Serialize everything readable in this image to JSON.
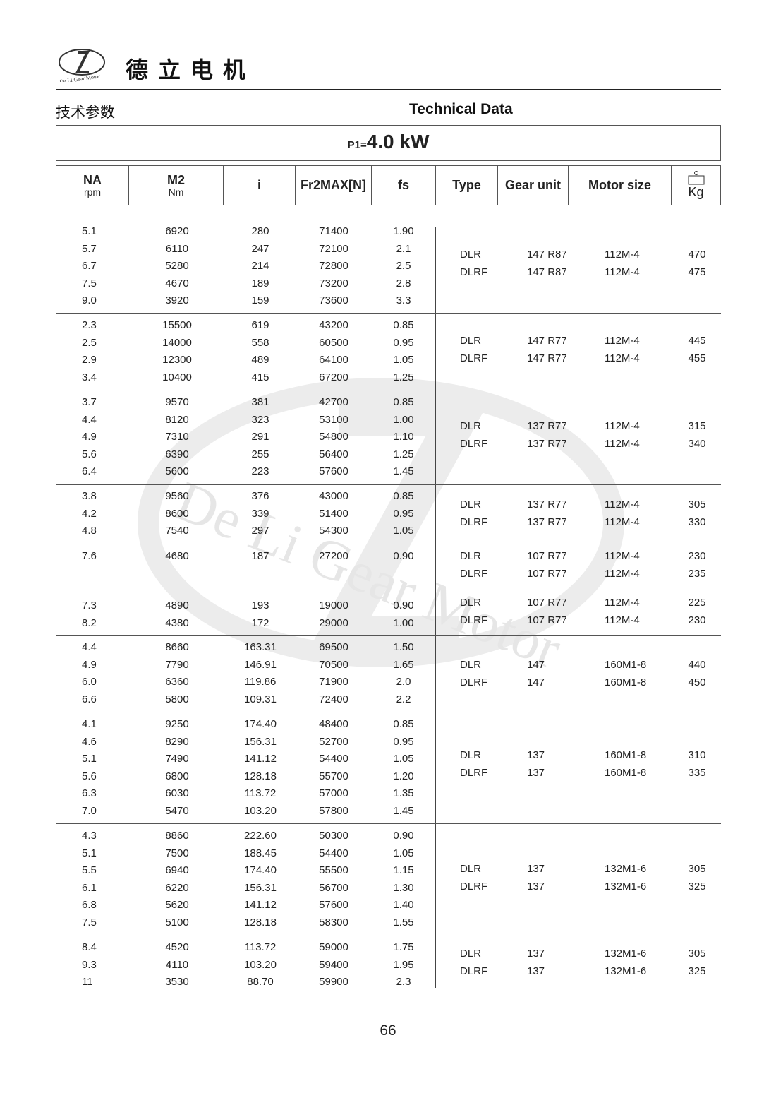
{
  "header": {
    "logo_text": "De Li Gear Motor",
    "brand": "德立电机",
    "cn_title": "技术参数",
    "en_title": "Technical Data"
  },
  "power": {
    "prefix": "P1=",
    "value": "4.0 kW"
  },
  "columns": {
    "na": "NA",
    "na_unit": "rpm",
    "m2": "M2",
    "m2_unit": "Nm",
    "i": "i",
    "fr": "Fr2MAX[N]",
    "fs": "fs",
    "type": "Type",
    "gear_unit": "Gear unit",
    "motor_size": "Motor size",
    "kg": "Kg",
    "weight_icon": "weight-icon"
  },
  "groups": [
    {
      "rows": [
        [
          "5.1",
          "6920",
          "280",
          "71400",
          "1.90"
        ],
        [
          "5.7",
          "6110",
          "247",
          "72100",
          "2.1"
        ],
        [
          "6.7",
          "5280",
          "214",
          "72800",
          "2.5"
        ],
        [
          "7.5",
          "4670",
          "189",
          "73200",
          "2.8"
        ],
        [
          "9.0",
          "3920",
          "159",
          "73600",
          "3.3"
        ]
      ],
      "units": [
        [
          "DLR",
          "147 R87",
          "112M-4",
          "470"
        ],
        [
          "DLRF",
          "147 R87",
          "112M-4",
          "475"
        ]
      ]
    },
    {
      "rows": [
        [
          "2.3",
          "15500",
          "619",
          "43200",
          "0.85"
        ],
        [
          "2.5",
          "14000",
          "558",
          "60500",
          "0.95"
        ],
        [
          "2.9",
          "12300",
          "489",
          "64100",
          "1.05"
        ],
        [
          "3.4",
          "10400",
          "415",
          "67200",
          "1.25"
        ]
      ],
      "units": [
        [
          "DLR",
          "147 R77",
          "112M-4",
          "445"
        ],
        [
          "DLRF",
          "147 R77",
          "112M-4",
          "455"
        ]
      ]
    },
    {
      "rows": [
        [
          "3.7",
          "9570",
          "381",
          "42700",
          "0.85"
        ],
        [
          "4.4",
          "8120",
          "323",
          "53100",
          "1.00"
        ],
        [
          "4.9",
          "7310",
          "291",
          "54800",
          "1.10"
        ],
        [
          "5.6",
          "6390",
          "255",
          "56400",
          "1.25"
        ],
        [
          "6.4",
          "5600",
          "223",
          "57600",
          "1.45"
        ]
      ],
      "units": [
        [
          "DLR",
          "137 R77",
          "112M-4",
          "315"
        ],
        [
          "DLRF",
          "137 R77",
          "112M-4",
          "340"
        ]
      ]
    },
    {
      "rows": [
        [
          "3.8",
          "9560",
          "376",
          "43000",
          "0.85"
        ],
        [
          "4.2",
          "8600",
          "339",
          "51400",
          "0.95"
        ],
        [
          "4.8",
          "7540",
          "297",
          "54300",
          "1.05"
        ]
      ],
      "units": [
        [
          "DLR",
          "137 R77",
          "112M-4",
          "305"
        ],
        [
          "DLRF",
          "137 R77",
          "112M-4",
          "330"
        ]
      ]
    },
    {
      "rows": [
        [
          "7.6",
          "4680",
          "187",
          "27200",
          "0.90"
        ]
      ],
      "units": [
        [
          "DLR",
          "107 R77",
          "112M-4",
          "230"
        ],
        [
          "DLRF",
          "107 R77",
          "112M-4",
          "235"
        ]
      ]
    },
    {
      "rows": [
        [
          "7.3",
          "4890",
          "193",
          "19000",
          "0.90"
        ],
        [
          "8.2",
          "4380",
          "172",
          "29000",
          "1.00"
        ]
      ],
      "units": [
        [
          "DLR",
          "107 R77",
          "112M-4",
          "225"
        ],
        [
          "DLRF",
          "107 R77",
          "112M-4",
          "230"
        ]
      ]
    },
    {
      "rows": [
        [
          "4.4",
          "8660",
          "163.31",
          "69500",
          "1.50"
        ],
        [
          "4.9",
          "7790",
          "146.91",
          "70500",
          "1.65"
        ],
        [
          "6.0",
          "6360",
          "119.86",
          "71900",
          "2.0"
        ],
        [
          "6.6",
          "5800",
          "109.31",
          "72400",
          "2.2"
        ]
      ],
      "units": [
        [
          "DLR",
          "147",
          "160M1-8",
          "440"
        ],
        [
          "DLRF",
          "147",
          "160M1-8",
          "450"
        ]
      ]
    },
    {
      "rows": [
        [
          "4.1",
          "9250",
          "174.40",
          "48400",
          "0.85"
        ],
        [
          "4.6",
          "8290",
          "156.31",
          "52700",
          "0.95"
        ],
        [
          "5.1",
          "7490",
          "141.12",
          "54400",
          "1.05"
        ],
        [
          "5.6",
          "6800",
          "128.18",
          "55700",
          "1.20"
        ],
        [
          "6.3",
          "6030",
          "113.72",
          "57000",
          "1.35"
        ],
        [
          "7.0",
          "5470",
          "103.20",
          "57800",
          "1.45"
        ]
      ],
      "units": [
        [
          "DLR",
          "137",
          "160M1-8",
          "310"
        ],
        [
          "DLRF",
          "137",
          "160M1-8",
          "335"
        ]
      ]
    },
    {
      "rows": [
        [
          "4.3",
          "8860",
          "222.60",
          "50300",
          "0.90"
        ],
        [
          "5.1",
          "7500",
          "188.45",
          "54400",
          "1.05"
        ],
        [
          "5.5",
          "6940",
          "174.40",
          "55500",
          "1.15"
        ],
        [
          "6.1",
          "6220",
          "156.31",
          "56700",
          "1.30"
        ],
        [
          "6.8",
          "5620",
          "141.12",
          "57600",
          "1.40"
        ],
        [
          "7.5",
          "5100",
          "128.18",
          "58300",
          "1.55"
        ]
      ],
      "units": [
        [
          "DLR",
          "137",
          "132M1-6",
          "305"
        ],
        [
          "DLRF",
          "137",
          "132M1-6",
          "325"
        ]
      ]
    },
    {
      "rows": [
        [
          "8.4",
          "4520",
          "113.72",
          "59000",
          "1.75"
        ],
        [
          "9.3",
          "4110",
          "103.20",
          "59400",
          "1.95"
        ],
        [
          "11",
          "3530",
          "88.70",
          "59900",
          "2.3"
        ]
      ],
      "units": [
        [
          "DLR",
          "137",
          "132M1-6",
          "305"
        ],
        [
          "DLRF",
          "137",
          "132M1-6",
          "325"
        ]
      ]
    }
  ],
  "page_number": "66"
}
